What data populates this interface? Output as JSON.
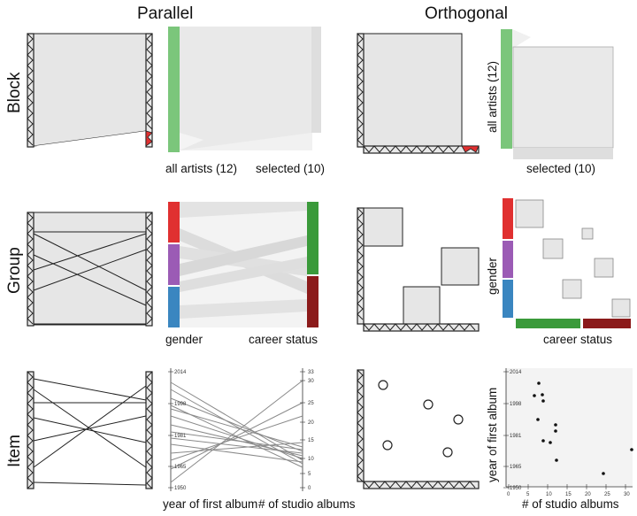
{
  "columns": {
    "parallel": "Parallel",
    "orthogonal": "Orthogonal"
  },
  "rows": {
    "block": "Block",
    "group": "Group",
    "item": "Item"
  },
  "labels": {
    "all_artists": "all artists (12)",
    "selected": "selected (10)",
    "gender": "gender",
    "career_status": "career status",
    "year_first_album": "year of first album",
    "studio_albums": "# of studio albums"
  },
  "axes": {
    "year_ticks": [
      "2014",
      "1998",
      "1981",
      "1965",
      "1950"
    ],
    "albums_ticks_left": [
      "33",
      "30",
      "25",
      "20",
      "15",
      "10",
      "5",
      "0"
    ],
    "albums_ticks_bottom": [
      "0",
      "5",
      "10",
      "15",
      "20",
      "25",
      "30"
    ]
  },
  "colors": {
    "green": "#7bc67b",
    "red": "#e03030",
    "purple": "#9b5bb5",
    "blue": "#3a86c0",
    "dark_green": "#3a9a3a",
    "dark_red": "#8b1a1a",
    "gray": "#e6e6e6"
  }
}
